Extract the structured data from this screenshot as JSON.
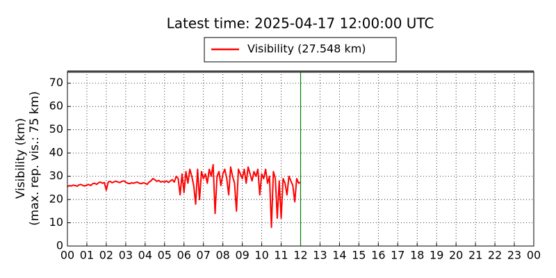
{
  "chart_data": {
    "type": "line",
    "title": "Latest time: 2025-04-17 12:00:00 UTC",
    "ylabel": "Visibility (km)",
    "ylabel2": "(max. rep. vis.: 75 km)",
    "x": [
      0,
      0.1,
      0.2,
      0.3,
      0.4,
      0.5,
      0.6,
      0.7,
      0.8,
      0.9,
      1,
      1.1,
      1.2,
      1.3,
      1.4,
      1.5,
      1.6,
      1.7,
      1.8,
      1.9,
      2,
      2.1,
      2.2,
      2.3,
      2.4,
      2.5,
      2.6,
      2.7,
      2.8,
      2.9,
      3,
      3.1,
      3.2,
      3.3,
      3.4,
      3.5,
      3.6,
      3.7,
      3.8,
      3.9,
      4,
      4.1,
      4.2,
      4.3,
      4.4,
      4.5,
      4.6,
      4.7,
      4.8,
      4.9,
      5,
      5.1,
      5.2,
      5.3,
      5.4,
      5.5,
      5.6,
      5.7,
      5.8,
      5.9,
      6,
      6.1,
      6.2,
      6.3,
      6.4,
      6.5,
      6.6,
      6.7,
      6.8,
      6.9,
      7,
      7.1,
      7.2,
      7.3,
      7.4,
      7.5,
      7.6,
      7.7,
      7.8,
      7.9,
      8,
      8.1,
      8.2,
      8.3,
      8.4,
      8.5,
      8.6,
      8.7,
      8.8,
      8.9,
      9,
      9.1,
      9.2,
      9.3,
      9.4,
      9.5,
      9.6,
      9.7,
      9.8,
      9.9,
      10,
      10.1,
      10.2,
      10.3,
      10.4,
      10.5,
      10.6,
      10.7,
      10.8,
      10.9,
      11,
      11.1,
      11.2,
      11.3,
      11.4,
      11.5,
      11.6,
      11.7,
      11.8,
      11.9,
      12
    ],
    "series": [
      {
        "name": "Visibility (27.548 km)",
        "color": "#ff0000",
        "values": [
          25.5,
          26,
          25.8,
          26.2,
          26,
          25.7,
          26.3,
          26.5,
          26,
          25.8,
          26.2,
          26.5,
          26,
          26.8,
          27,
          26.5,
          27.2,
          27.5,
          27,
          27.3,
          24,
          27.5,
          27.8,
          27.2,
          27.6,
          27.9,
          27.5,
          27.3,
          27.8,
          28,
          27.5,
          27,
          26.8,
          27.2,
          27,
          27.3,
          27.5,
          27,
          26.8,
          27.2,
          27,
          26.5,
          27.5,
          28,
          29,
          28.5,
          27.8,
          28.2,
          27.5,
          27.8,
          27.5,
          28,
          27.3,
          28,
          28.5,
          27.5,
          30,
          29,
          22,
          31,
          23,
          32,
          27,
          33,
          30,
          26,
          18,
          33,
          20,
          32,
          29,
          31,
          27,
          33,
          30,
          35,
          14,
          30,
          32,
          26,
          31,
          33,
          29,
          22,
          34,
          30,
          27,
          15,
          33,
          31,
          29,
          33,
          27,
          34,
          31,
          28,
          32,
          30,
          33,
          22,
          31,
          29,
          33,
          27,
          30,
          8,
          32,
          29,
          12,
          28,
          12,
          29,
          27,
          22,
          30,
          28,
          26,
          19,
          29,
          27,
          27.5
        ]
      }
    ],
    "xlim": [
      0,
      24
    ],
    "ylim": [
      0,
      75
    ],
    "xticks": [
      {
        "value": 0,
        "label": "00"
      },
      {
        "value": 1,
        "label": "01"
      },
      {
        "value": 2,
        "label": "02"
      },
      {
        "value": 3,
        "label": "03"
      },
      {
        "value": 4,
        "label": "04"
      },
      {
        "value": 5,
        "label": "05"
      },
      {
        "value": 6,
        "label": "06"
      },
      {
        "value": 7,
        "label": "07"
      },
      {
        "value": 8,
        "label": "08"
      },
      {
        "value": 9,
        "label": "09"
      },
      {
        "value": 10,
        "label": "10"
      },
      {
        "value": 11,
        "label": "11"
      },
      {
        "value": 12,
        "label": "12"
      },
      {
        "value": 13,
        "label": "13"
      },
      {
        "value": 14,
        "label": "14"
      },
      {
        "value": 15,
        "label": "15"
      },
      {
        "value": 16,
        "label": "16"
      },
      {
        "value": 17,
        "label": "17"
      },
      {
        "value": 18,
        "label": "18"
      },
      {
        "value": 19,
        "label": "19"
      },
      {
        "value": 20,
        "label": "20"
      },
      {
        "value": 21,
        "label": "21"
      },
      {
        "value": 22,
        "label": "22"
      },
      {
        "value": 23,
        "label": "23"
      },
      {
        "value": 24,
        "label": "00"
      }
    ],
    "yticks": [
      0,
      10,
      20,
      30,
      40,
      50,
      60,
      70
    ],
    "grid": true,
    "max_line": {
      "y": 75,
      "color": "#888888"
    },
    "vline": {
      "x": 12,
      "color": "#008000"
    }
  }
}
